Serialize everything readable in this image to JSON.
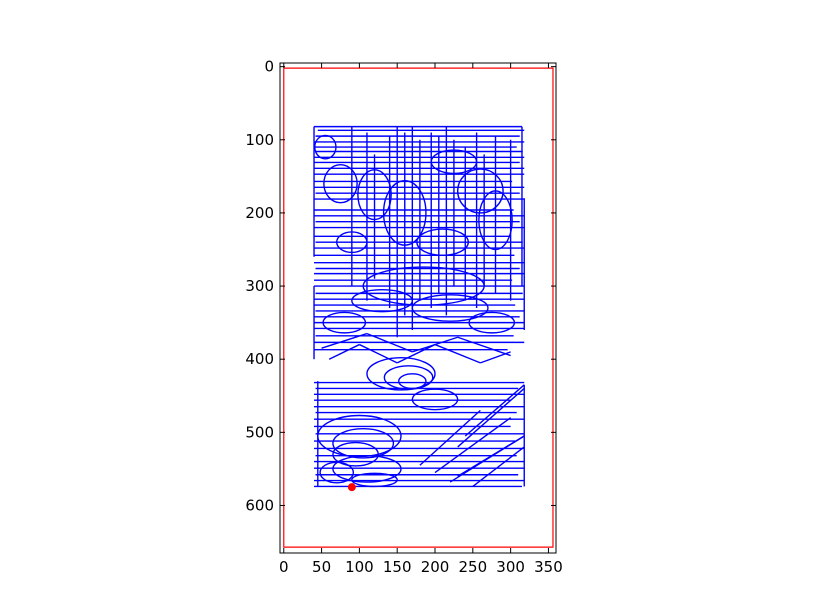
{
  "chart_data": {
    "type": "line",
    "title": "",
    "xlabel": "",
    "ylabel": "",
    "xlim": [
      -5,
      360
    ],
    "ylim": [
      665,
      -5
    ],
    "y_inverted": true,
    "aspect": "equal",
    "grid": false,
    "legend": null,
    "x_ticks": [
      0,
      50,
      100,
      150,
      200,
      250,
      300,
      350
    ],
    "y_ticks": [
      0,
      100,
      200,
      300,
      400,
      500,
      600
    ],
    "x_tick_labels": [
      "0",
      "50",
      "100",
      "150",
      "200",
      "250",
      "300",
      "350"
    ],
    "y_tick_labels": [
      "0",
      "100",
      "200",
      "300",
      "400",
      "500",
      "600"
    ],
    "boundary": {
      "color": "#ff0000",
      "x": [
        0,
        356,
        356,
        0,
        0
      ],
      "y": [
        2,
        2,
        657,
        657,
        2
      ]
    },
    "marker": {
      "color": "#ff0000",
      "x": 90,
      "y": 575
    },
    "path_color": "#0000ff",
    "path_segments": [
      [
        [
          40,
          82
        ],
        [
          315,
          82
        ]
      ],
      [
        [
          45,
          87
        ],
        [
          318,
          87
        ]
      ],
      [
        [
          42,
          95
        ],
        [
          312,
          95
        ]
      ],
      [
        [
          40,
          103
        ],
        [
          318,
          103
        ]
      ],
      [
        [
          40,
          110
        ],
        [
          308,
          110
        ]
      ],
      [
        [
          42,
          116
        ],
        [
          316,
          116
        ]
      ],
      [
        [
          40,
          124
        ],
        [
          318,
          124
        ]
      ],
      [
        [
          40,
          131
        ],
        [
          312,
          131
        ]
      ],
      [
        [
          40,
          139
        ],
        [
          318,
          139
        ]
      ],
      [
        [
          40,
          147
        ],
        [
          318,
          147
        ]
      ],
      [
        [
          40,
          157
        ],
        [
          302,
          157
        ]
      ],
      [
        [
          40,
          165
        ],
        [
          318,
          165
        ]
      ],
      [
        [
          42,
          173
        ],
        [
          312,
          173
        ]
      ],
      [
        [
          40,
          181
        ],
        [
          318,
          181
        ]
      ],
      [
        [
          40,
          196
        ],
        [
          304,
          196
        ]
      ],
      [
        [
          40,
          204
        ],
        [
          318,
          204
        ]
      ],
      [
        [
          42,
          212
        ],
        [
          312,
          212
        ]
      ],
      [
        [
          40,
          220
        ],
        [
          318,
          220
        ]
      ],
      [
        [
          40,
          232
        ],
        [
          300,
          232
        ]
      ],
      [
        [
          42,
          240
        ],
        [
          316,
          240
        ]
      ],
      [
        [
          40,
          248
        ],
        [
          318,
          248
        ]
      ],
      [
        [
          40,
          258
        ],
        [
          305,
          258
        ]
      ],
      [
        [
          40,
          268
        ],
        [
          318,
          268
        ]
      ],
      [
        [
          42,
          276
        ],
        [
          312,
          276
        ]
      ],
      [
        [
          40,
          283
        ],
        [
          318,
          283
        ]
      ],
      [
        [
          40,
          292
        ],
        [
          302,
          292
        ]
      ],
      [
        [
          40,
          300
        ],
        [
          318,
          300
        ]
      ],
      [
        [
          42,
          310
        ],
        [
          316,
          310
        ]
      ],
      [
        [
          40,
          318
        ],
        [
          318,
          318
        ]
      ],
      [
        [
          40,
          326
        ],
        [
          306,
          326
        ]
      ],
      [
        [
          42,
          334
        ],
        [
          318,
          334
        ]
      ],
      [
        [
          40,
          342
        ],
        [
          312,
          342
        ]
      ],
      [
        [
          40,
          350
        ],
        [
          318,
          350
        ]
      ],
      [
        [
          40,
          358
        ],
        [
          318,
          358
        ]
      ],
      [
        [
          42,
          368
        ],
        [
          304,
          368
        ]
      ],
      [
        [
          40,
          377
        ],
        [
          318,
          377
        ]
      ],
      [
        [
          40,
          387
        ],
        [
          296,
          387
        ]
      ],
      [
        [
          40,
          432
        ],
        [
          318,
          432
        ]
      ],
      [
        [
          42,
          440
        ],
        [
          310,
          440
        ]
      ],
      [
        [
          40,
          448
        ],
        [
          318,
          448
        ]
      ],
      [
        [
          40,
          456
        ],
        [
          300,
          456
        ]
      ],
      [
        [
          40,
          465
        ],
        [
          318,
          465
        ]
      ],
      [
        [
          42,
          473
        ],
        [
          308,
          473
        ]
      ],
      [
        [
          40,
          482
        ],
        [
          318,
          482
        ]
      ],
      [
        [
          40,
          492
        ],
        [
          300,
          492
        ]
      ],
      [
        [
          42,
          502
        ],
        [
          318,
          502
        ]
      ],
      [
        [
          40,
          512
        ],
        [
          306,
          512
        ]
      ],
      [
        [
          40,
          522
        ],
        [
          318,
          522
        ]
      ],
      [
        [
          42,
          532
        ],
        [
          308,
          532
        ]
      ],
      [
        [
          40,
          540
        ],
        [
          318,
          540
        ]
      ],
      [
        [
          40,
          549
        ],
        [
          318,
          549
        ]
      ],
      [
        [
          42,
          558
        ],
        [
          310,
          558
        ]
      ],
      [
        [
          40,
          566
        ],
        [
          318,
          566
        ]
      ],
      [
        [
          40,
          574
        ],
        [
          315,
          574
        ]
      ],
      [
        [
          315,
          82
        ],
        [
          315,
          300
        ]
      ],
      [
        [
          318,
          180
        ],
        [
          318,
          360
        ]
      ],
      [
        [
          40,
          82
        ],
        [
          40,
          260
        ]
      ],
      [
        [
          40,
          300
        ],
        [
          40,
          400
        ]
      ],
      [
        [
          45,
          430
        ],
        [
          45,
          574
        ]
      ],
      [
        [
          318,
          435
        ],
        [
          318,
          574
        ]
      ],
      [
        [
          90,
          82
        ],
        [
          90,
          300
        ]
      ],
      [
        [
          110,
          90
        ],
        [
          110,
          320
        ]
      ],
      [
        [
          120,
          120
        ],
        [
          120,
          290
        ]
      ],
      [
        [
          140,
          95
        ],
        [
          140,
          330
        ]
      ],
      [
        [
          150,
          82
        ],
        [
          150,
          370
        ]
      ],
      [
        [
          160,
          90
        ],
        [
          160,
          340
        ]
      ],
      [
        [
          170,
          82
        ],
        [
          170,
          360
        ]
      ],
      [
        [
          180,
          100
        ],
        [
          180,
          320
        ]
      ],
      [
        [
          195,
          90
        ],
        [
          195,
          330
        ]
      ],
      [
        [
          205,
          95
        ],
        [
          205,
          310
        ]
      ],
      [
        [
          215,
          82
        ],
        [
          215,
          340
        ]
      ],
      [
        [
          225,
          100
        ],
        [
          225,
          300
        ]
      ],
      [
        [
          240,
          110
        ],
        [
          240,
          320
        ]
      ],
      [
        [
          255,
          90
        ],
        [
          255,
          330
        ]
      ],
      [
        [
          265,
          120
        ],
        [
          265,
          300
        ]
      ],
      [
        [
          280,
          95
        ],
        [
          280,
          310
        ]
      ],
      [
        [
          300,
          100
        ],
        [
          300,
          320
        ]
      ],
      [
        [
          318,
          435
        ],
        [
          240,
          505
        ]
      ],
      [
        [
          318,
          440
        ],
        [
          230,
          520
        ]
      ],
      [
        [
          300,
          480
        ],
        [
          200,
          555
        ]
      ],
      [
        [
          318,
          505
        ],
        [
          220,
          568
        ]
      ],
      [
        [
          260,
          470
        ],
        [
          180,
          545
        ]
      ],
      [
        [
          318,
          520
        ],
        [
          250,
          574
        ]
      ],
      [
        [
          230,
          560
        ],
        [
          318,
          505
        ]
      ],
      [
        [
          60,
          400
        ],
        [
          100,
          380
        ]
      ],
      [
        [
          100,
          380
        ],
        [
          150,
          405
        ]
      ],
      [
        [
          150,
          405
        ],
        [
          200,
          380
        ]
      ],
      [
        [
          200,
          380
        ],
        [
          260,
          405
        ]
      ],
      [
        [
          260,
          405
        ],
        [
          300,
          390
        ]
      ],
      [
        [
          50,
          385
        ],
        [
          110,
          365
        ]
      ],
      [
        [
          110,
          365
        ],
        [
          170,
          390
        ]
      ],
      [
        [
          170,
          390
        ],
        [
          230,
          370
        ]
      ],
      [
        [
          230,
          370
        ],
        [
          300,
          395
        ]
      ]
    ],
    "path_loops": [
      {
        "cx": 155,
        "cy": 420,
        "rx": 45,
        "ry": 22
      },
      {
        "cx": 165,
        "cy": 425,
        "rx": 32,
        "ry": 16
      },
      {
        "cx": 170,
        "cy": 430,
        "rx": 18,
        "ry": 10
      },
      {
        "cx": 200,
        "cy": 455,
        "rx": 30,
        "ry": 14
      },
      {
        "cx": 100,
        "cy": 505,
        "rx": 55,
        "ry": 28
      },
      {
        "cx": 105,
        "cy": 515,
        "rx": 40,
        "ry": 20
      },
      {
        "cx": 95,
        "cy": 530,
        "rx": 30,
        "ry": 16
      },
      {
        "cx": 110,
        "cy": 550,
        "rx": 45,
        "ry": 18
      },
      {
        "cx": 70,
        "cy": 555,
        "rx": 22,
        "ry": 14
      },
      {
        "cx": 120,
        "cy": 565,
        "rx": 30,
        "ry": 9
      },
      {
        "cx": 75,
        "cy": 160,
        "rx": 22,
        "ry": 26
      },
      {
        "cx": 120,
        "cy": 175,
        "rx": 22,
        "ry": 34
      },
      {
        "cx": 260,
        "cy": 170,
        "rx": 30,
        "ry": 30
      },
      {
        "cx": 280,
        "cy": 210,
        "rx": 22,
        "ry": 40
      },
      {
        "cx": 90,
        "cy": 240,
        "rx": 20,
        "ry": 14
      },
      {
        "cx": 210,
        "cy": 240,
        "rx": 34,
        "ry": 18
      },
      {
        "cx": 185,
        "cy": 300,
        "rx": 80,
        "ry": 26
      },
      {
        "cx": 130,
        "cy": 320,
        "rx": 40,
        "ry": 15
      },
      {
        "cx": 220,
        "cy": 330,
        "rx": 50,
        "ry": 18
      },
      {
        "cx": 275,
        "cy": 350,
        "rx": 30,
        "ry": 14
      },
      {
        "cx": 80,
        "cy": 350,
        "rx": 28,
        "ry": 14
      },
      {
        "cx": 160,
        "cy": 200,
        "rx": 28,
        "ry": 44
      },
      {
        "cx": 225,
        "cy": 130,
        "rx": 30,
        "ry": 16
      },
      {
        "cx": 55,
        "cy": 110,
        "rx": 14,
        "ry": 16
      }
    ]
  }
}
